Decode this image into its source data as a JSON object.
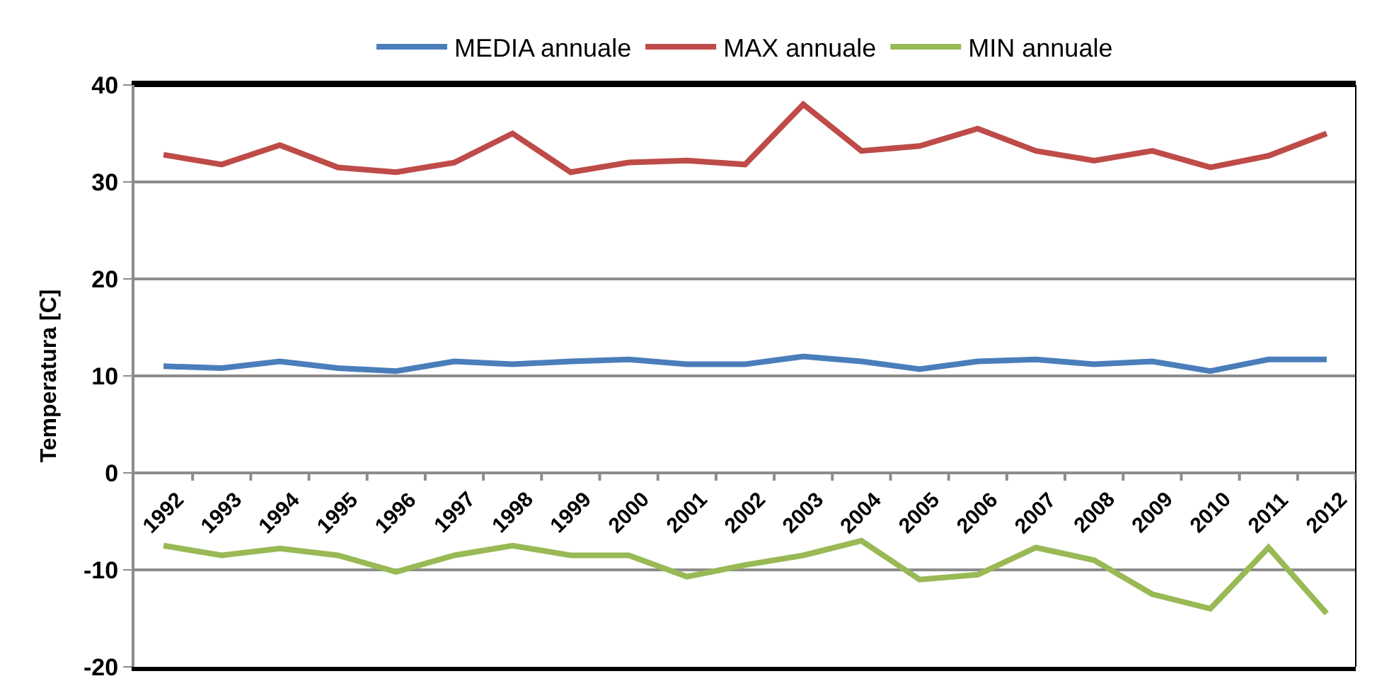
{
  "chart_data": {
    "type": "line",
    "ylabel": "Temperatura [C]",
    "categories": [
      "1992",
      "1993",
      "1994",
      "1995",
      "1996",
      "1997",
      "1998",
      "1999",
      "2000",
      "2001",
      "2002",
      "2003",
      "2004",
      "2005",
      "2006",
      "2007",
      "2008",
      "2009",
      "2010",
      "2011",
      "2012"
    ],
    "series": [
      {
        "name": "MEDIA annuale",
        "color": "#4a7ebb",
        "values": [
          11,
          10.8,
          11.5,
          10.8,
          10.5,
          11.5,
          11.2,
          11.5,
          11.7,
          11.2,
          11.2,
          12,
          11.5,
          10.7,
          11.5,
          11.7,
          11.2,
          11.5,
          10.5,
          11.7,
          11.7
        ]
      },
      {
        "name": "MAX annuale",
        "color": "#be4b48",
        "values": [
          32.8,
          31.8,
          33.8,
          31.5,
          31,
          32,
          35,
          31,
          32,
          32.2,
          31.8,
          38,
          33.2,
          33.7,
          35.5,
          33.2,
          32.2,
          33.2,
          31.5,
          32.7,
          35
        ]
      },
      {
        "name": "MIN annuale",
        "color": "#98b954",
        "values": [
          -7.5,
          -8.5,
          -7.8,
          -8.5,
          -10.2,
          -8.5,
          -7.5,
          -8.5,
          -8.5,
          -10.7,
          -9.5,
          -8.5,
          -7,
          -11,
          -10.5,
          -7.7,
          -9,
          -12.5,
          -14,
          -7.7,
          -14.5
        ]
      }
    ],
    "ylim": [
      -20,
      40
    ],
    "yticks": [
      -20,
      -10,
      0,
      10,
      20,
      30,
      40
    ],
    "grid": "y",
    "legend": "top",
    "marker": "none",
    "line_style": "solid"
  }
}
